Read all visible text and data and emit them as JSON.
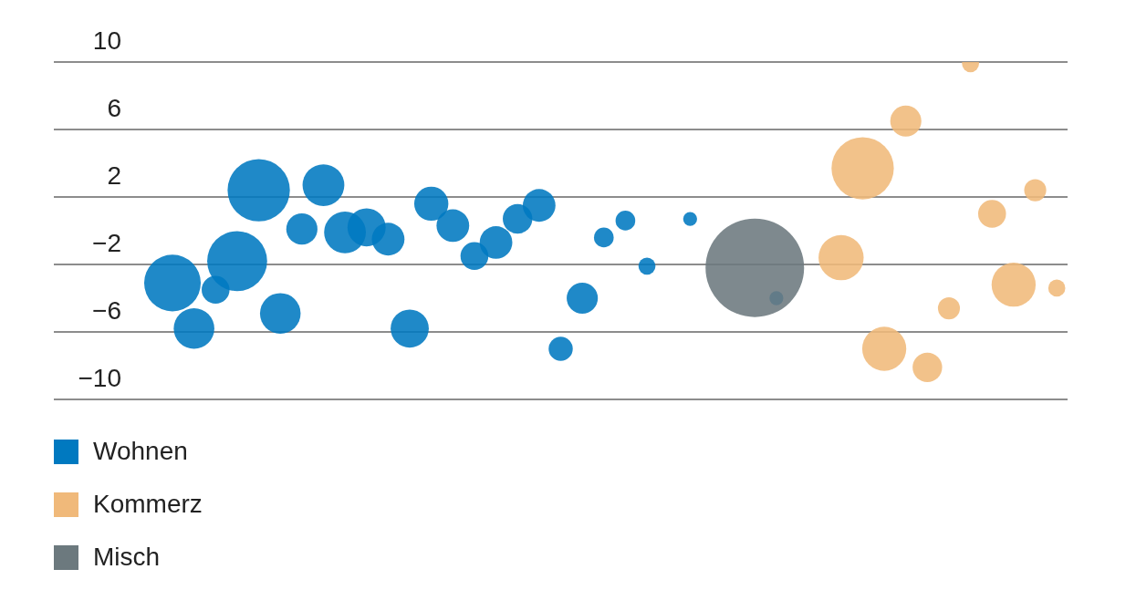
{
  "chart_data": {
    "type": "bubble",
    "categories": [
      null,
      null,
      null,
      null,
      null,
      null,
      null,
      null,
      null,
      null,
      null,
      null,
      null,
      null,
      null,
      null,
      null,
      null,
      null,
      null,
      null,
      null,
      null,
      null,
      null,
      null,
      null,
      null,
      null,
      null,
      null,
      null,
      null,
      null,
      null,
      null,
      null,
      null,
      null,
      null,
      null,
      null,
      null,
      null,
      null,
      null,
      null
    ],
    "series": [
      {
        "name": "Wohnen",
        "color": "#0079c0",
        "values": [
          null,
          null,
          null,
          null,
          null,
          -3.1,
          -5.8,
          -3.5,
          -1.8,
          2.4,
          -4.9,
          0.1,
          2.7,
          -0.1,
          0.2,
          -0.5,
          -5.8,
          1.6,
          0.3,
          -1.5,
          -0.7,
          0.7,
          1.5,
          -7.0,
          -4.0,
          -0.4,
          0.6,
          -2.1,
          null,
          0.7,
          null,
          null,
          null,
          -4.0,
          null,
          null,
          null,
          null,
          null,
          null,
          null,
          null,
          null,
          null,
          null,
          null,
          null
        ],
        "sizes": [
          null,
          null,
          null,
          null,
          null,
          0.33,
          0.17,
          0.08,
          0.37,
          0.4,
          0.17,
          0.1,
          0.18,
          0.18,
          0.15,
          0.11,
          0.15,
          0.12,
          0.11,
          0.08,
          0.11,
          0.09,
          0.11,
          0.06,
          0.1,
          0.04,
          0.04,
          0.03,
          null,
          0.02,
          null,
          null,
          null,
          0.02,
          null,
          null,
          null,
          null,
          null,
          null,
          null,
          null,
          null,
          null,
          null,
          null,
          null
        ]
      },
      {
        "name": "Kommerz",
        "color": "#f0b97a",
        "values": [
          null,
          null,
          null,
          null,
          null,
          null,
          null,
          null,
          null,
          null,
          null,
          null,
          null,
          null,
          null,
          null,
          null,
          null,
          null,
          null,
          null,
          null,
          null,
          null,
          null,
          null,
          null,
          null,
          null,
          null,
          null,
          null,
          null,
          null,
          null,
          null,
          -1.6,
          3.7,
          -7.0,
          6.5,
          -8.1,
          -4.6,
          9.9,
          1.0,
          -3.2,
          2.4,
          -3.4
        ],
        "sizes": [
          null,
          null,
          null,
          null,
          null,
          null,
          null,
          null,
          null,
          null,
          null,
          null,
          null,
          null,
          null,
          null,
          null,
          null,
          null,
          null,
          null,
          null,
          null,
          null,
          null,
          null,
          null,
          null,
          null,
          null,
          null,
          null,
          null,
          null,
          null,
          null,
          0.21,
          0.4,
          0.2,
          0.1,
          0.09,
          0.05,
          0.03,
          0.08,
          0.2,
          0.05,
          0.03
        ]
      },
      {
        "name": "Misch",
        "color": "#6c797e",
        "values": [
          null,
          null,
          null,
          null,
          null,
          null,
          null,
          null,
          null,
          null,
          null,
          null,
          null,
          null,
          null,
          null,
          null,
          null,
          null,
          null,
          null,
          null,
          null,
          null,
          null,
          null,
          null,
          null,
          null,
          null,
          null,
          null,
          -2.2,
          null,
          null,
          null,
          null,
          null,
          null,
          null,
          null,
          null,
          null,
          null,
          null,
          null,
          null
        ],
        "sizes": [
          null,
          null,
          null,
          null,
          null,
          null,
          null,
          null,
          null,
          null,
          null,
          null,
          null,
          null,
          null,
          null,
          null,
          null,
          null,
          null,
          null,
          null,
          null,
          null,
          null,
          null,
          null,
          null,
          null,
          null,
          null,
          null,
          1,
          null,
          null,
          null,
          null,
          null,
          null,
          null,
          null,
          null,
          null,
          null,
          null,
          null,
          null
        ]
      }
    ],
    "ylim": [
      -10,
      10
    ],
    "yticks": [
      10,
      6,
      2,
      {
        "value": -2,
        "label": "−2"
      },
      {
        "value": -6,
        "label": "−6"
      },
      {
        "value": -10,
        "label": "−10"
      }
    ],
    "grid": "y",
    "legend": "bottom",
    "tick_labels": "y"
  }
}
